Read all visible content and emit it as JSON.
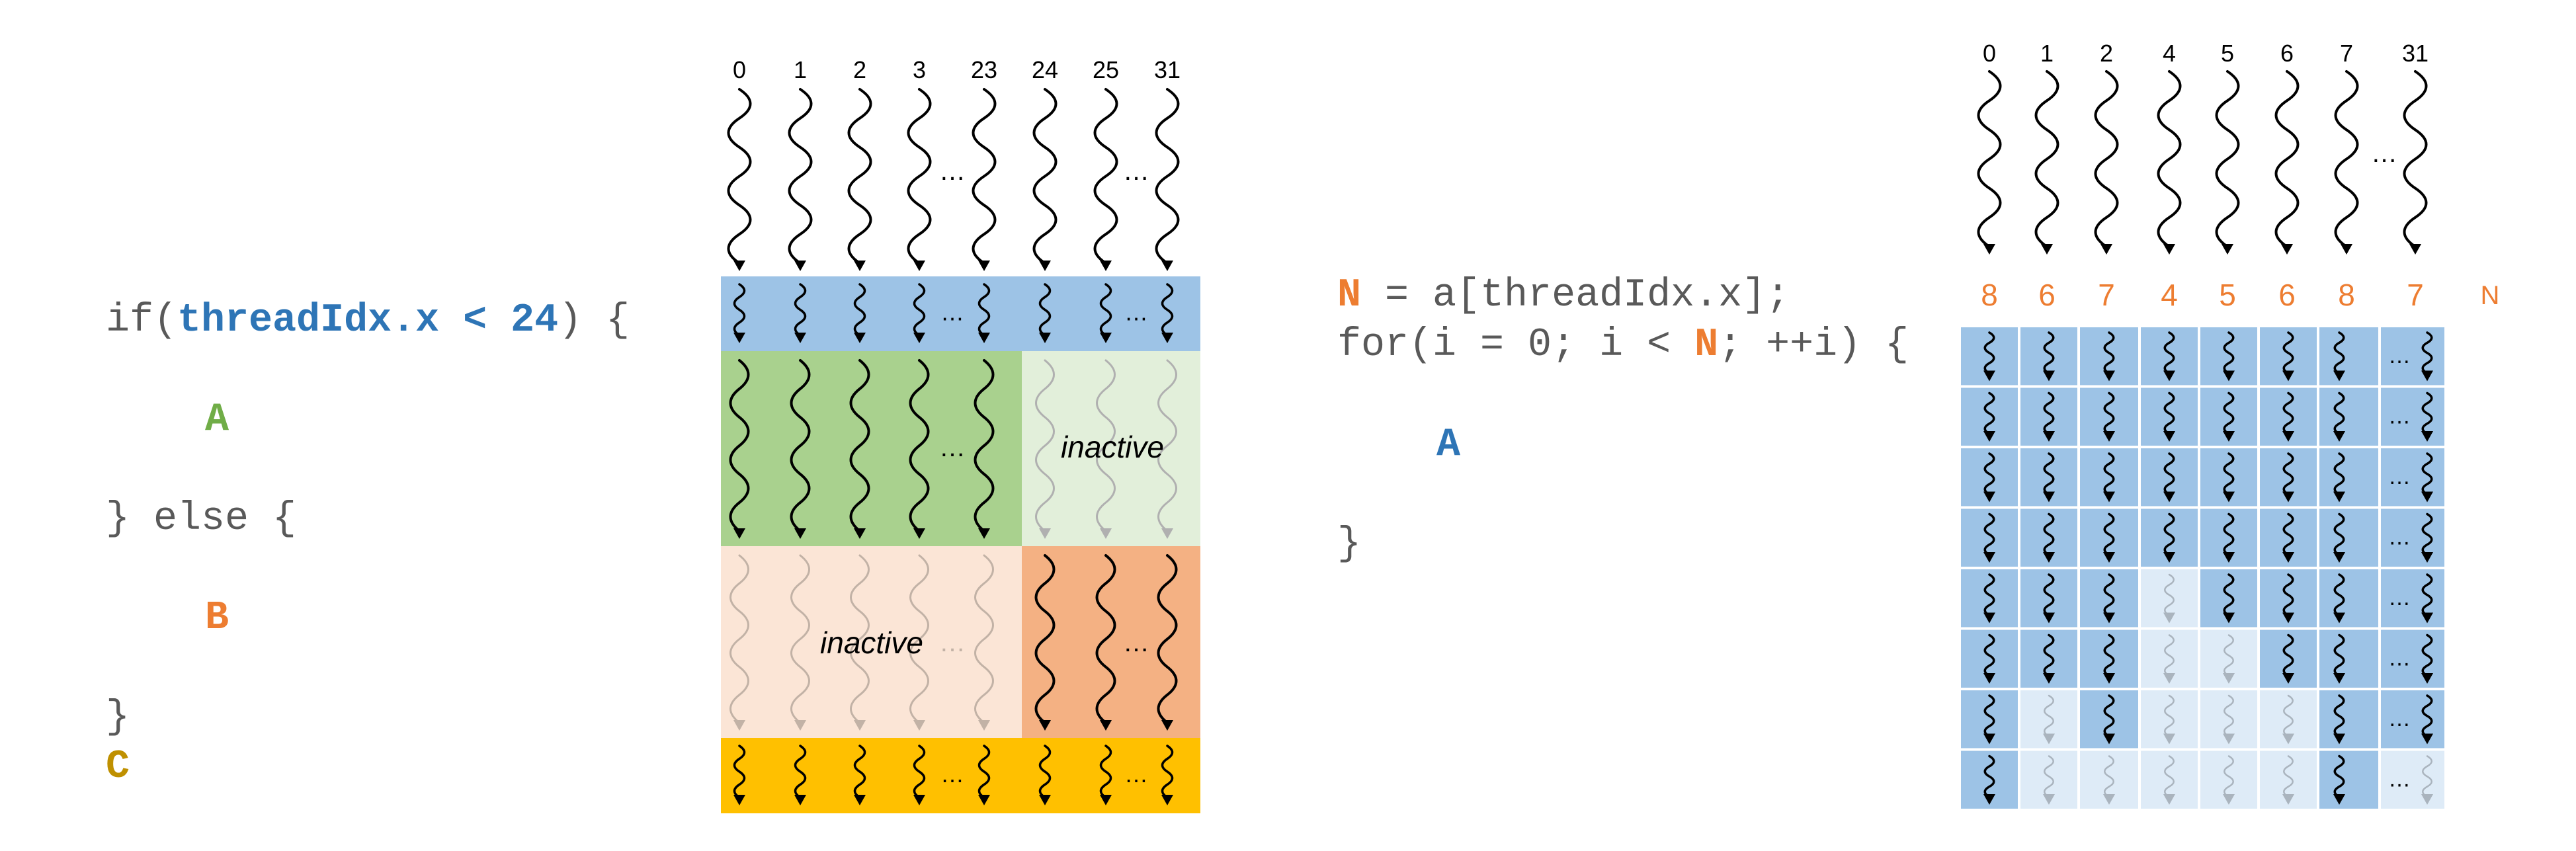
{
  "left": {
    "code": {
      "if_prefix": "if(",
      "cond_var": "threadIdx.x",
      "cond_op": " < ",
      "cond_val": "24",
      "if_suffix": ") {",
      "block_a": "A",
      "else_line": "} else {",
      "block_b": "B",
      "close": "}",
      "block_c": "C"
    },
    "thread_ids": [
      "0",
      "1",
      "2",
      "3",
      "23",
      "24",
      "25",
      "31"
    ],
    "ellipsis": "…",
    "inactive_label": "inactive",
    "rows": [
      {
        "name": "pre-branch",
        "active": "all"
      },
      {
        "name": "block-a",
        "active_threads": "0-23"
      },
      {
        "name": "block-b",
        "active_threads": "24-31"
      },
      {
        "name": "block-c",
        "active": "all"
      }
    ]
  },
  "right": {
    "code": {
      "line1_var": "N",
      "line1_rest": " = a[threadIdx.x];",
      "line2_prefix": "for(i = 0; i < ",
      "line2_var": "N",
      "line2_suffix": "; ++i)  {",
      "block_a": "A",
      "close": "}"
    },
    "thread_ids": [
      "0",
      "1",
      "2",
      "4",
      "5",
      "6",
      "7",
      "31"
    ],
    "n_values": [
      "8",
      "6",
      "7",
      "4",
      "5",
      "6",
      "8",
      "7"
    ],
    "n_label": "N",
    "iterations": 8
  },
  "colors": {
    "blue": "#9dc3e6",
    "green": "#a9d18e",
    "green_light": "#e2efda",
    "peach_light": "#fbe5d6",
    "orange": "#f4b183",
    "gold": "#ffc000",
    "light_blue": "#deebf7",
    "code_blue": "#2e75b6",
    "code_green": "#70ad47",
    "code_orange": "#ed7d31",
    "code_gold": "#bf9000",
    "code_gray": "#595959"
  }
}
